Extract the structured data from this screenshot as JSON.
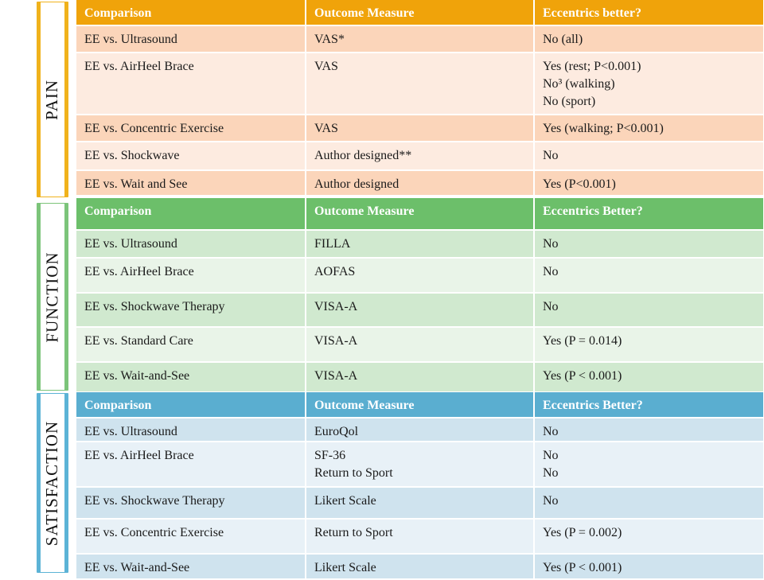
{
  "labels": {
    "pain": "PAIN",
    "function": "FUNCTION",
    "satisfaction": "SATISFACTION"
  },
  "pain": {
    "headers": [
      "Comparison",
      "Outcome Measure",
      "Eccentrics better?"
    ],
    "rows": [
      {
        "comparison": "EE vs. Ultrasound",
        "measure": [
          "VAS*"
        ],
        "result": [
          "No   (all)"
        ]
      },
      {
        "comparison": "EE vs. AirHeel Brace",
        "measure": [
          "VAS"
        ],
        "result": [
          "Yes   (rest; P<0.001)",
          "No³  (walking)",
          "No    (sport)"
        ]
      },
      {
        "comparison": "EE vs. Concentric Exercise",
        "measure": [
          "VAS"
        ],
        "result": [
          "Yes   (walking; P<0.001)"
        ]
      },
      {
        "comparison": "EE vs. Shockwave",
        "measure": [
          "Author designed**"
        ],
        "result": [
          "No"
        ]
      },
      {
        "comparison": "EE vs. Wait and See",
        "measure": [
          "Author designed"
        ],
        "result": [
          "Yes    (P<0.001)"
        ]
      }
    ]
  },
  "function": {
    "headers": [
      "Comparison",
      "Outcome Measure",
      "Eccentrics Better?"
    ],
    "rows": [
      {
        "comparison": "EE vs. Ultrasound",
        "measure": [
          "FILLA"
        ],
        "result": [
          "No"
        ]
      },
      {
        "comparison": "EE vs. AirHeel Brace",
        "measure": [
          "AOFAS"
        ],
        "result": [
          "No"
        ]
      },
      {
        "comparison": "EE vs. Shockwave Therapy",
        "measure": [
          "VISA-A"
        ],
        "result": [
          "No"
        ]
      },
      {
        "comparison": "EE vs. Standard Care",
        "measure": [
          "VISA-A"
        ],
        "result": [
          "Yes (P = 0.014)"
        ]
      },
      {
        "comparison": "EE vs. Wait-and-See",
        "measure": [
          "VISA-A"
        ],
        "result": [
          "Yes (P < 0.001)"
        ]
      }
    ]
  },
  "satisfaction": {
    "headers": [
      "Comparison",
      "Outcome Measure",
      "Eccentrics Better?"
    ],
    "rows": [
      {
        "comparison": "EE vs. Ultrasound",
        "measure": [
          "EuroQol"
        ],
        "result": [
          "No"
        ]
      },
      {
        "comparison": "EE vs. AirHeel Brace",
        "measure": [
          "SF-36",
          "Return to Sport"
        ],
        "result": [
          "No",
          "No"
        ]
      },
      {
        "comparison": "EE vs. Shockwave Therapy",
        "measure": [
          "Likert Scale"
        ],
        "result": [
          "No"
        ]
      },
      {
        "comparison": "EE vs. Concentric Exercise",
        "measure": [
          "Return to Sport"
        ],
        "result": [
          "Yes (P = 0.002)"
        ]
      },
      {
        "comparison": "EE vs. Wait-and-See",
        "measure": [
          "Likert Scale"
        ],
        "result": [
          "Yes (P < 0.001)"
        ]
      }
    ]
  }
}
